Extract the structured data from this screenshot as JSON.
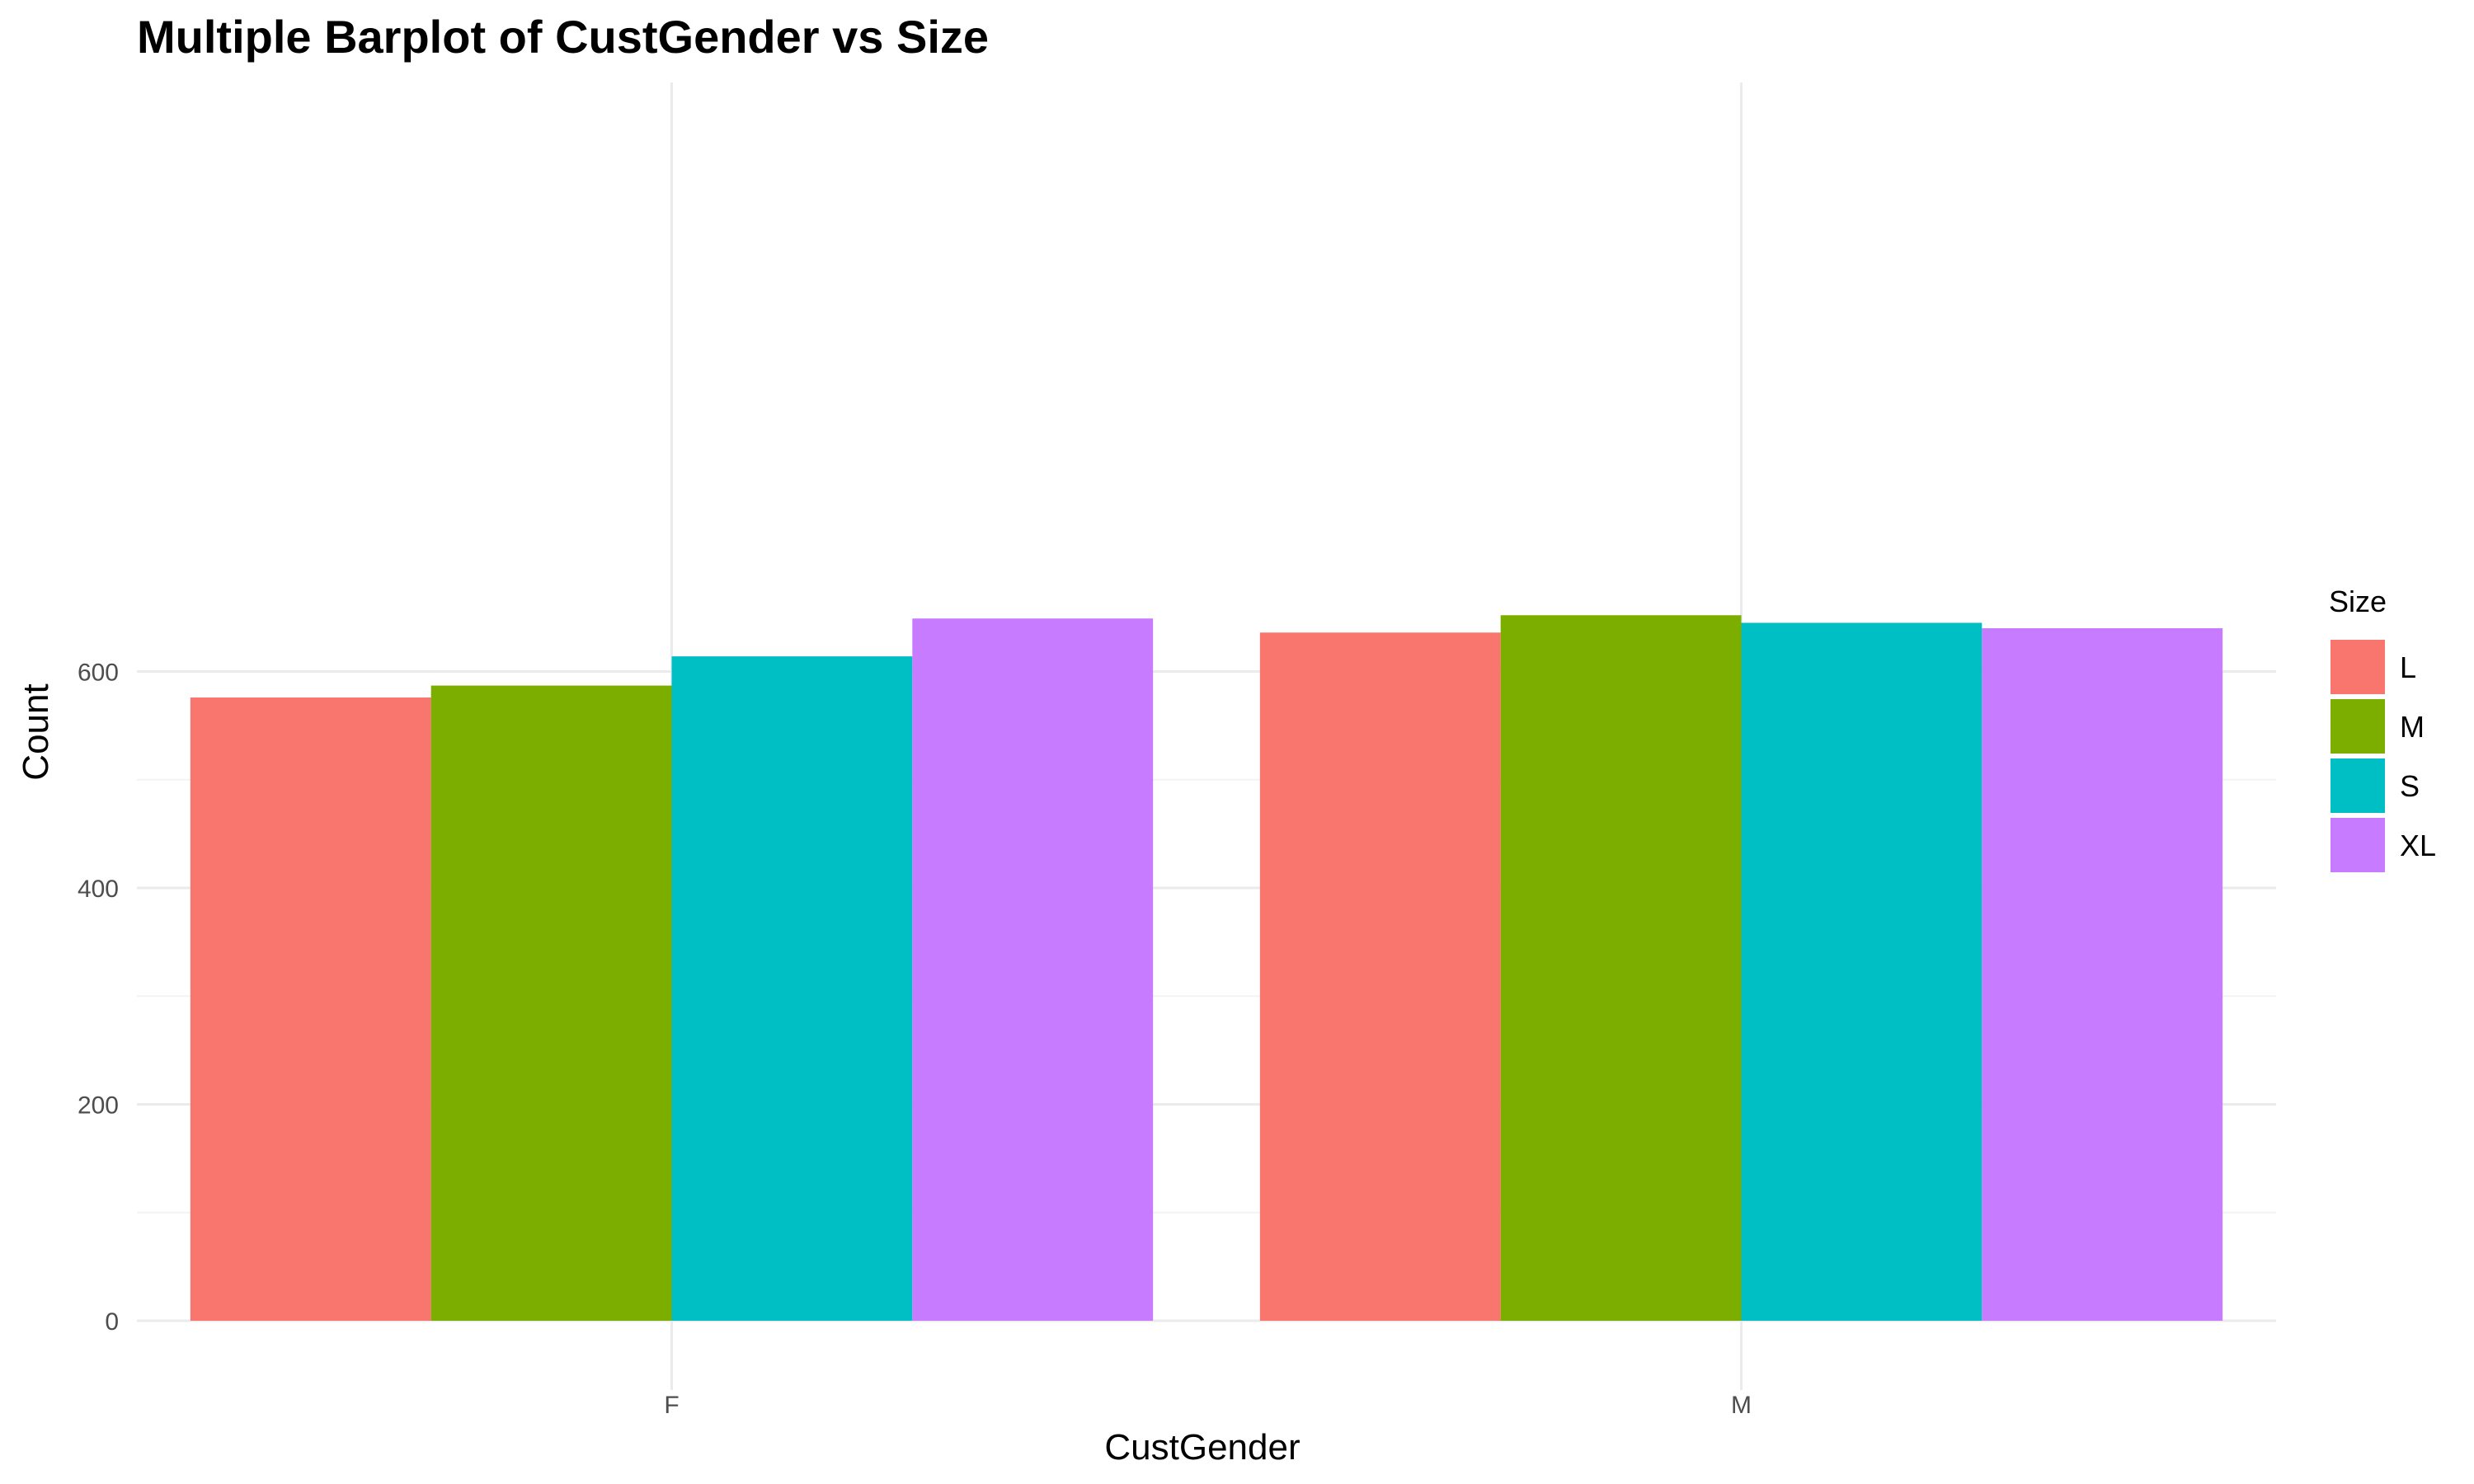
{
  "chart_data": {
    "type": "bar",
    "title": "Multiple Barplot of CustGender vs Size",
    "xlabel": "CustGender",
    "ylabel": "Count",
    "categories": [
      "F",
      "M"
    ],
    "series": [
      {
        "name": "L",
        "values": [
          576,
          636
        ],
        "color": "#F8766D"
      },
      {
        "name": "M",
        "values": [
          587,
          652
        ],
        "color": "#7CAE00"
      },
      {
        "name": "S",
        "values": [
          614,
          645
        ],
        "color": "#00BFC4"
      },
      {
        "name": "XL",
        "values": [
          649,
          640
        ],
        "color": "#C77CFF"
      }
    ],
    "ylim": [
      0,
      690
    ],
    "yticks": [
      0,
      200,
      400,
      600
    ],
    "legend": {
      "title": "Size",
      "position": "right"
    },
    "grid": true
  }
}
